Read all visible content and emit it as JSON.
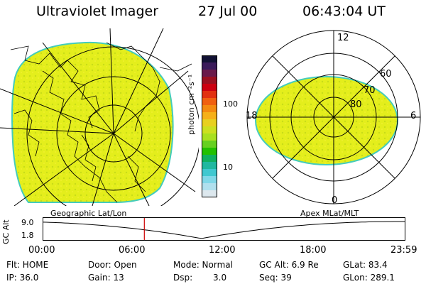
{
  "header": {
    "instrument": "Ultraviolet Imager",
    "date": "27 Jul 00",
    "time": "06:43:04 UT"
  },
  "left_panel": {
    "projection_label": "Geographic Lat/Lon"
  },
  "colorbar": {
    "unit_label": "photon cm⁻²s⁻¹",
    "ticks": [
      "100",
      "10"
    ],
    "colors": [
      "#111133",
      "#3a1a5a",
      "#6a1a4a",
      "#9a1020",
      "#cc0010",
      "#e23010",
      "#f06010",
      "#f48a10",
      "#f6b018",
      "#e8d020",
      "#cce020",
      "#a8e020",
      "#66d020",
      "#22c000",
      "#10b060",
      "#20b8a0",
      "#40c8d0",
      "#80d8e8",
      "#b0e0ee",
      "#dde8ee"
    ]
  },
  "right_panel": {
    "projection_label": "Apex MLat/MLT",
    "mlt_labels": {
      "top": "12",
      "bottom": "0",
      "left": "18",
      "right": "6"
    },
    "lat_labels": [
      "60",
      "70",
      "80"
    ]
  },
  "timeline": {
    "ylabel": "GC Alt",
    "y_ticks": [
      "9.0",
      "1.8"
    ],
    "x_ticks": [
      "00:00",
      "06:00",
      "12:00",
      "18:00",
      "23:59"
    ],
    "current_time_hours": 6.72
  },
  "status": {
    "flt": "Flt: HOME",
    "ip": "IP: 36.0",
    "door": "Door: Open",
    "gain": "Gain: 13",
    "mode": "Mode: Normal",
    "dsp_label": "Dsp:",
    "dsp_value": "3.0",
    "gc_alt": "GC Alt: 6.9 Re",
    "seq": "Seq: 39",
    "glat": "GLat: 83.4",
    "glon": "GLon: 289.1"
  }
}
